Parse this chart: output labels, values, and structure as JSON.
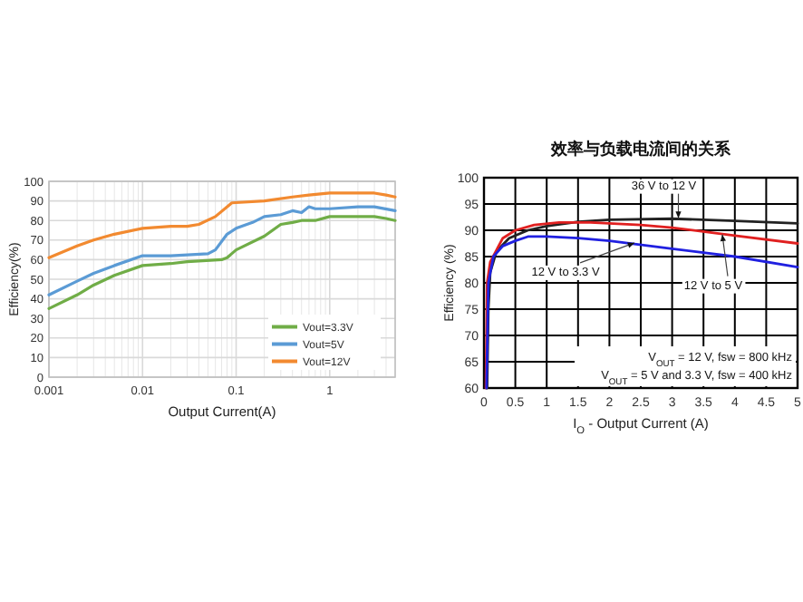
{
  "chart_data": [
    {
      "type": "line",
      "xlabel": "Output Current(A)",
      "ylabel": "Efficiency(%)",
      "log": "x",
      "grid": true,
      "legend": "bottom right",
      "xlim": [
        0.001,
        5
      ],
      "xticks": [
        0.001,
        0.01,
        0.1,
        1
      ],
      "ylim": [
        0,
        100
      ],
      "yticks": [
        0,
        10,
        20,
        30,
        40,
        50,
        60,
        70,
        80,
        90,
        100
      ],
      "series": [
        {
          "name": "Vout=3.3V",
          "color": "#70ad47",
          "x": [
            0.001,
            0.002,
            0.003,
            0.005,
            0.01,
            0.02,
            0.03,
            0.07,
            0.08,
            0.1,
            0.2,
            0.3,
            0.4,
            0.5,
            0.7,
            1,
            2,
            3,
            4,
            5
          ],
          "values": [
            35,
            42,
            47,
            52,
            57,
            58,
            59,
            60,
            61,
            65,
            72,
            78,
            79,
            80,
            80,
            82,
            82,
            82,
            81,
            80
          ]
        },
        {
          "name": "Vout=5V",
          "color": "#5b9bd5",
          "x": [
            0.001,
            0.002,
            0.003,
            0.005,
            0.01,
            0.02,
            0.05,
            0.06,
            0.08,
            0.1,
            0.15,
            0.2,
            0.3,
            0.4,
            0.5,
            0.6,
            0.7,
            1,
            2,
            3,
            5
          ],
          "values": [
            42,
            49,
            53,
            57,
            62,
            62,
            63,
            65,
            73,
            76,
            79,
            82,
            83,
            85,
            84,
            87,
            86,
            86,
            87,
            87,
            85
          ]
        },
        {
          "name": "Vout=12V",
          "color": "#f28a30",
          "x": [
            0.001,
            0.002,
            0.003,
            0.005,
            0.01,
            0.02,
            0.03,
            0.04,
            0.06,
            0.09,
            0.2,
            0.4,
            0.6,
            1,
            2,
            3,
            4,
            5
          ],
          "values": [
            61,
            67,
            70,
            73,
            76,
            77,
            77,
            78,
            82,
            89,
            90,
            92,
            93,
            94,
            94,
            94,
            93,
            92
          ]
        }
      ]
    },
    {
      "type": "line",
      "title": "效率与负载电流间的关系",
      "xlabel": "I$_{O}$ - Output Current (A)",
      "ylabel": "Efficiency (%)",
      "grid": true,
      "xlim": [
        0,
        5
      ],
      "xticks": [
        0,
        0.5,
        1,
        1.5,
        2,
        2.5,
        3,
        3.5,
        4,
        4.5,
        5
      ],
      "ylim": [
        60,
        100
      ],
      "yticks": [
        60,
        65,
        70,
        75,
        80,
        85,
        90,
        95,
        100
      ],
      "series": [
        {
          "color": "#222222",
          "x": [
            0.05,
            0.07,
            0.1,
            0.2,
            0.4,
            0.7,
            1,
            1.5,
            2,
            3,
            4,
            5
          ],
          "values": [
            60,
            75,
            82,
            86,
            88.5,
            90,
            90.8,
            91.6,
            92,
            92.2,
            91.8,
            91.3
          ]
        },
        {
          "color": "#e02020",
          "x": [
            0.03,
            0.05,
            0.1,
            0.3,
            0.5,
            0.8,
            1.2,
            1.7,
            2.5,
            3,
            4,
            5
          ],
          "values": [
            60,
            80,
            84,
            88.5,
            90,
            91,
            91.5,
            91.5,
            91,
            90.5,
            89,
            87.5
          ]
        },
        {
          "color": "#2020e0",
          "x": [
            0.04,
            0.07,
            0.15,
            0.3,
            0.5,
            0.7,
            1,
            1.5,
            2,
            3,
            4,
            5
          ],
          "values": [
            60,
            80,
            85,
            87,
            88,
            88.8,
            88.8,
            88.5,
            88,
            86.5,
            85,
            83
          ]
        }
      ],
      "annotations": [
        {
          "text": "36 V to 12 V",
          "x": 3.1,
          "y": 92.3
        },
        {
          "text": "12 V to 3.3 V",
          "x": 2.4,
          "y": 87.6
        },
        {
          "text": "12 V to 5 V",
          "x": 3.8,
          "y": 89.2
        },
        "V$_{OUT}$ = 12 V, fsw = 800 kHz",
        "V$_{OUT}$ = 5 V and 3.3 V, fsw = 400 kHz"
      ]
    }
  ]
}
